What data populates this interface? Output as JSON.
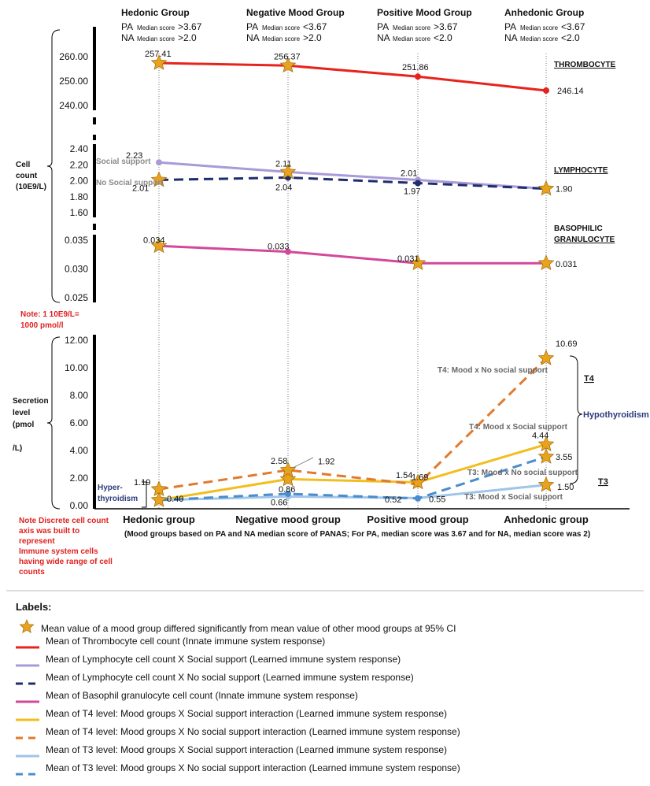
{
  "chart_data": {
    "type": "line",
    "groups": [
      {
        "title": "Hedonic Group",
        "pa_prefix": "PA",
        "pa_sub": "Median score",
        "pa_val": ">3.67",
        "na_prefix": "NA",
        "na_sub": "Median score",
        "na_val": ">2.0"
      },
      {
        "title": "Negative Mood Group",
        "pa_prefix": "PA",
        "pa_sub": "Median score",
        "pa_val": "<3.67",
        "na_prefix": "NA",
        "na_sub": "Median score",
        "na_val": ">2.0"
      },
      {
        "title": "Positive Mood Group",
        "pa_prefix": "PA",
        "pa_sub": "Median score",
        "pa_val": ">3.67",
        "na_prefix": "NA",
        "na_sub": "Median score",
        "na_val": "<2.0"
      },
      {
        "title": "Anhedonic Group",
        "pa_prefix": "PA",
        "pa_sub": "Median score",
        "pa_val": "<3.67",
        "na_prefix": "NA",
        "na_sub": "Median score",
        "na_val": "<2.0"
      }
    ],
    "categories": [
      "Hedonic group",
      "Negative mood group",
      "Positive mood group",
      "Anhedonic group"
    ],
    "x_note": "(Mood groups based on PA and NA median score of PANAS; For PA, median score was 3.67 and for NA, median score was 2)",
    "y_label_cells": [
      "Cell",
      "count",
      "(10E9/L)"
    ],
    "y_label_secretion": [
      "Secretion",
      "level",
      "(pmol",
      "/L)"
    ],
    "note_unit": [
      "Note: 1 10E9/L=",
      "1000 pmol/l"
    ],
    "note_axis": [
      "Note Discrete cell count",
      "axis was built to",
      "represent",
      "Immune system cells",
      "having wide range of cell",
      "counts"
    ],
    "panels": [
      {
        "id": "thrombocyte",
        "ticks": [
          "260.00",
          "250.00",
          "240.00"
        ],
        "ylim": [
          236,
          262.5
        ]
      },
      {
        "id": "lymphocyte",
        "ticks": [
          "2.40",
          "2.20",
          "2.00",
          "1.80",
          "1.60"
        ],
        "ylim": [
          1.6,
          2.4
        ]
      },
      {
        "id": "basophil",
        "ticks": [
          "0.035",
          "0.030",
          "0.025"
        ],
        "ylim": [
          0.025,
          0.035
        ]
      },
      {
        "id": "hormone",
        "ticks": [
          "12.00",
          "10.00",
          "8.00",
          "6.00",
          "4.00",
          "2.00",
          "0.00"
        ],
        "ylim": [
          0,
          12
        ]
      }
    ],
    "series": [
      {
        "key": "thrombo",
        "panel": 0,
        "color": "#e8231c",
        "dash": "solid",
        "values": [
          257.41,
          256.37,
          251.86,
          246.14
        ],
        "labels": [
          "257.41",
          "256.37",
          "251.86",
          "246.14"
        ],
        "stars": [
          true,
          true,
          false,
          false
        ],
        "legend": "Mean of Thrombocyte cell count (Innate immune system response)"
      },
      {
        "key": "lymph_ss",
        "panel": 1,
        "color": "#a99ad8",
        "dash": "solid",
        "values": [
          2.23,
          2.11,
          2.01,
          1.9
        ],
        "labels": [
          "2.23",
          "2.11",
          "2.01",
          "1.90"
        ],
        "stars": [
          false,
          true,
          false,
          true
        ],
        "legend": "Mean of Lymphocyte cell count X Social support (Learned immune system response)"
      },
      {
        "key": "lymph_nss",
        "panel": 1,
        "color": "#1f2d6b",
        "dash": "dash",
        "values": [
          2.01,
          2.04,
          1.97,
          1.9
        ],
        "labels": [
          "2.01",
          "2.04",
          "1.97",
          ""
        ],
        "stars": [
          true,
          false,
          false,
          false
        ],
        "legend": "Mean of Lymphocyte cell count X No social support (Learned immune system response)"
      },
      {
        "key": "baso",
        "panel": 2,
        "color": "#d2489a",
        "dash": "solid",
        "values": [
          0.034,
          0.033,
          0.031,
          0.031
        ],
        "labels": [
          "0.034",
          "0.033",
          "0.031",
          "0.031"
        ],
        "stars": [
          true,
          false,
          true,
          true
        ],
        "legend": "Mean of Basophil granulocyte cell count (Innate immune system response)"
      },
      {
        "key": "t4_ss",
        "panel": 3,
        "color": "#f2be1e",
        "dash": "solid",
        "values": [
          0.4,
          1.92,
          1.69,
          4.44
        ],
        "labels": [
          "0.40",
          "1.92",
          "1.69",
          "4.44"
        ],
        "stars": [
          true,
          true,
          true,
          true
        ],
        "legend": "Mean of T4 level: Mood groups X Social support interaction (Learned immune system response)"
      },
      {
        "key": "t4_nss",
        "panel": 3,
        "color": "#e07a2e",
        "dash": "dash",
        "values": [
          1.19,
          2.58,
          1.54,
          10.69
        ],
        "labels": [
          "1.19",
          "2.58",
          "1.54",
          "10.69"
        ],
        "stars": [
          true,
          true,
          false,
          true
        ],
        "legend": "Mean of T4 level: Mood groups X No social support interaction (Learned immune system response)"
      },
      {
        "key": "t3_ss",
        "panel": 3,
        "color": "#9fc5e8",
        "dash": "solid",
        "values": [
          0.4,
          0.66,
          0.55,
          1.5
        ],
        "labels": [
          "",
          "0.66",
          "0.55",
          "1.50"
        ],
        "stars": [
          false,
          false,
          false,
          true
        ],
        "legend": "Mean of T3 level: Mood groups X Social support interaction (Learned immune system response)"
      },
      {
        "key": "t3_nss",
        "panel": 3,
        "color": "#4a8ccc",
        "dash": "dash",
        "values": [
          0.4,
          0.86,
          0.52,
          3.55
        ],
        "labels": [
          "",
          "0.86",
          "0.52",
          "3.55"
        ],
        "stars": [
          false,
          false,
          false,
          true
        ],
        "legend": "Mean of T3 level: Mood groups X No social support interaction (Learned immune system response)"
      }
    ],
    "annotations": {
      "thrombocyte": "THROMBOCYTE",
      "lymphocyte": "LYMPHOCYTE",
      "basophil_1": "BASOPHILIC",
      "basophil_2": "GRANULOCYTE",
      "social_support": "Social support",
      "no_social_support": "No Social support",
      "t4_nss": "T4: Mood x No social support",
      "t4_ss": "T4: Mood x Social support",
      "t3_nss": "T3: Mood x No social support",
      "t3_ss": "T3: Mood x Social support",
      "t4": "T4",
      "t3": "T3",
      "hypothyroidism": "Hypothyroidism",
      "hyper_1": "Hyper-",
      "hyper_2": "thyroidism"
    },
    "legend_title": "Labels:",
    "legend_star": "Mean value of a mood group differed significantly from mean value of other mood groups at 95% CI"
  }
}
